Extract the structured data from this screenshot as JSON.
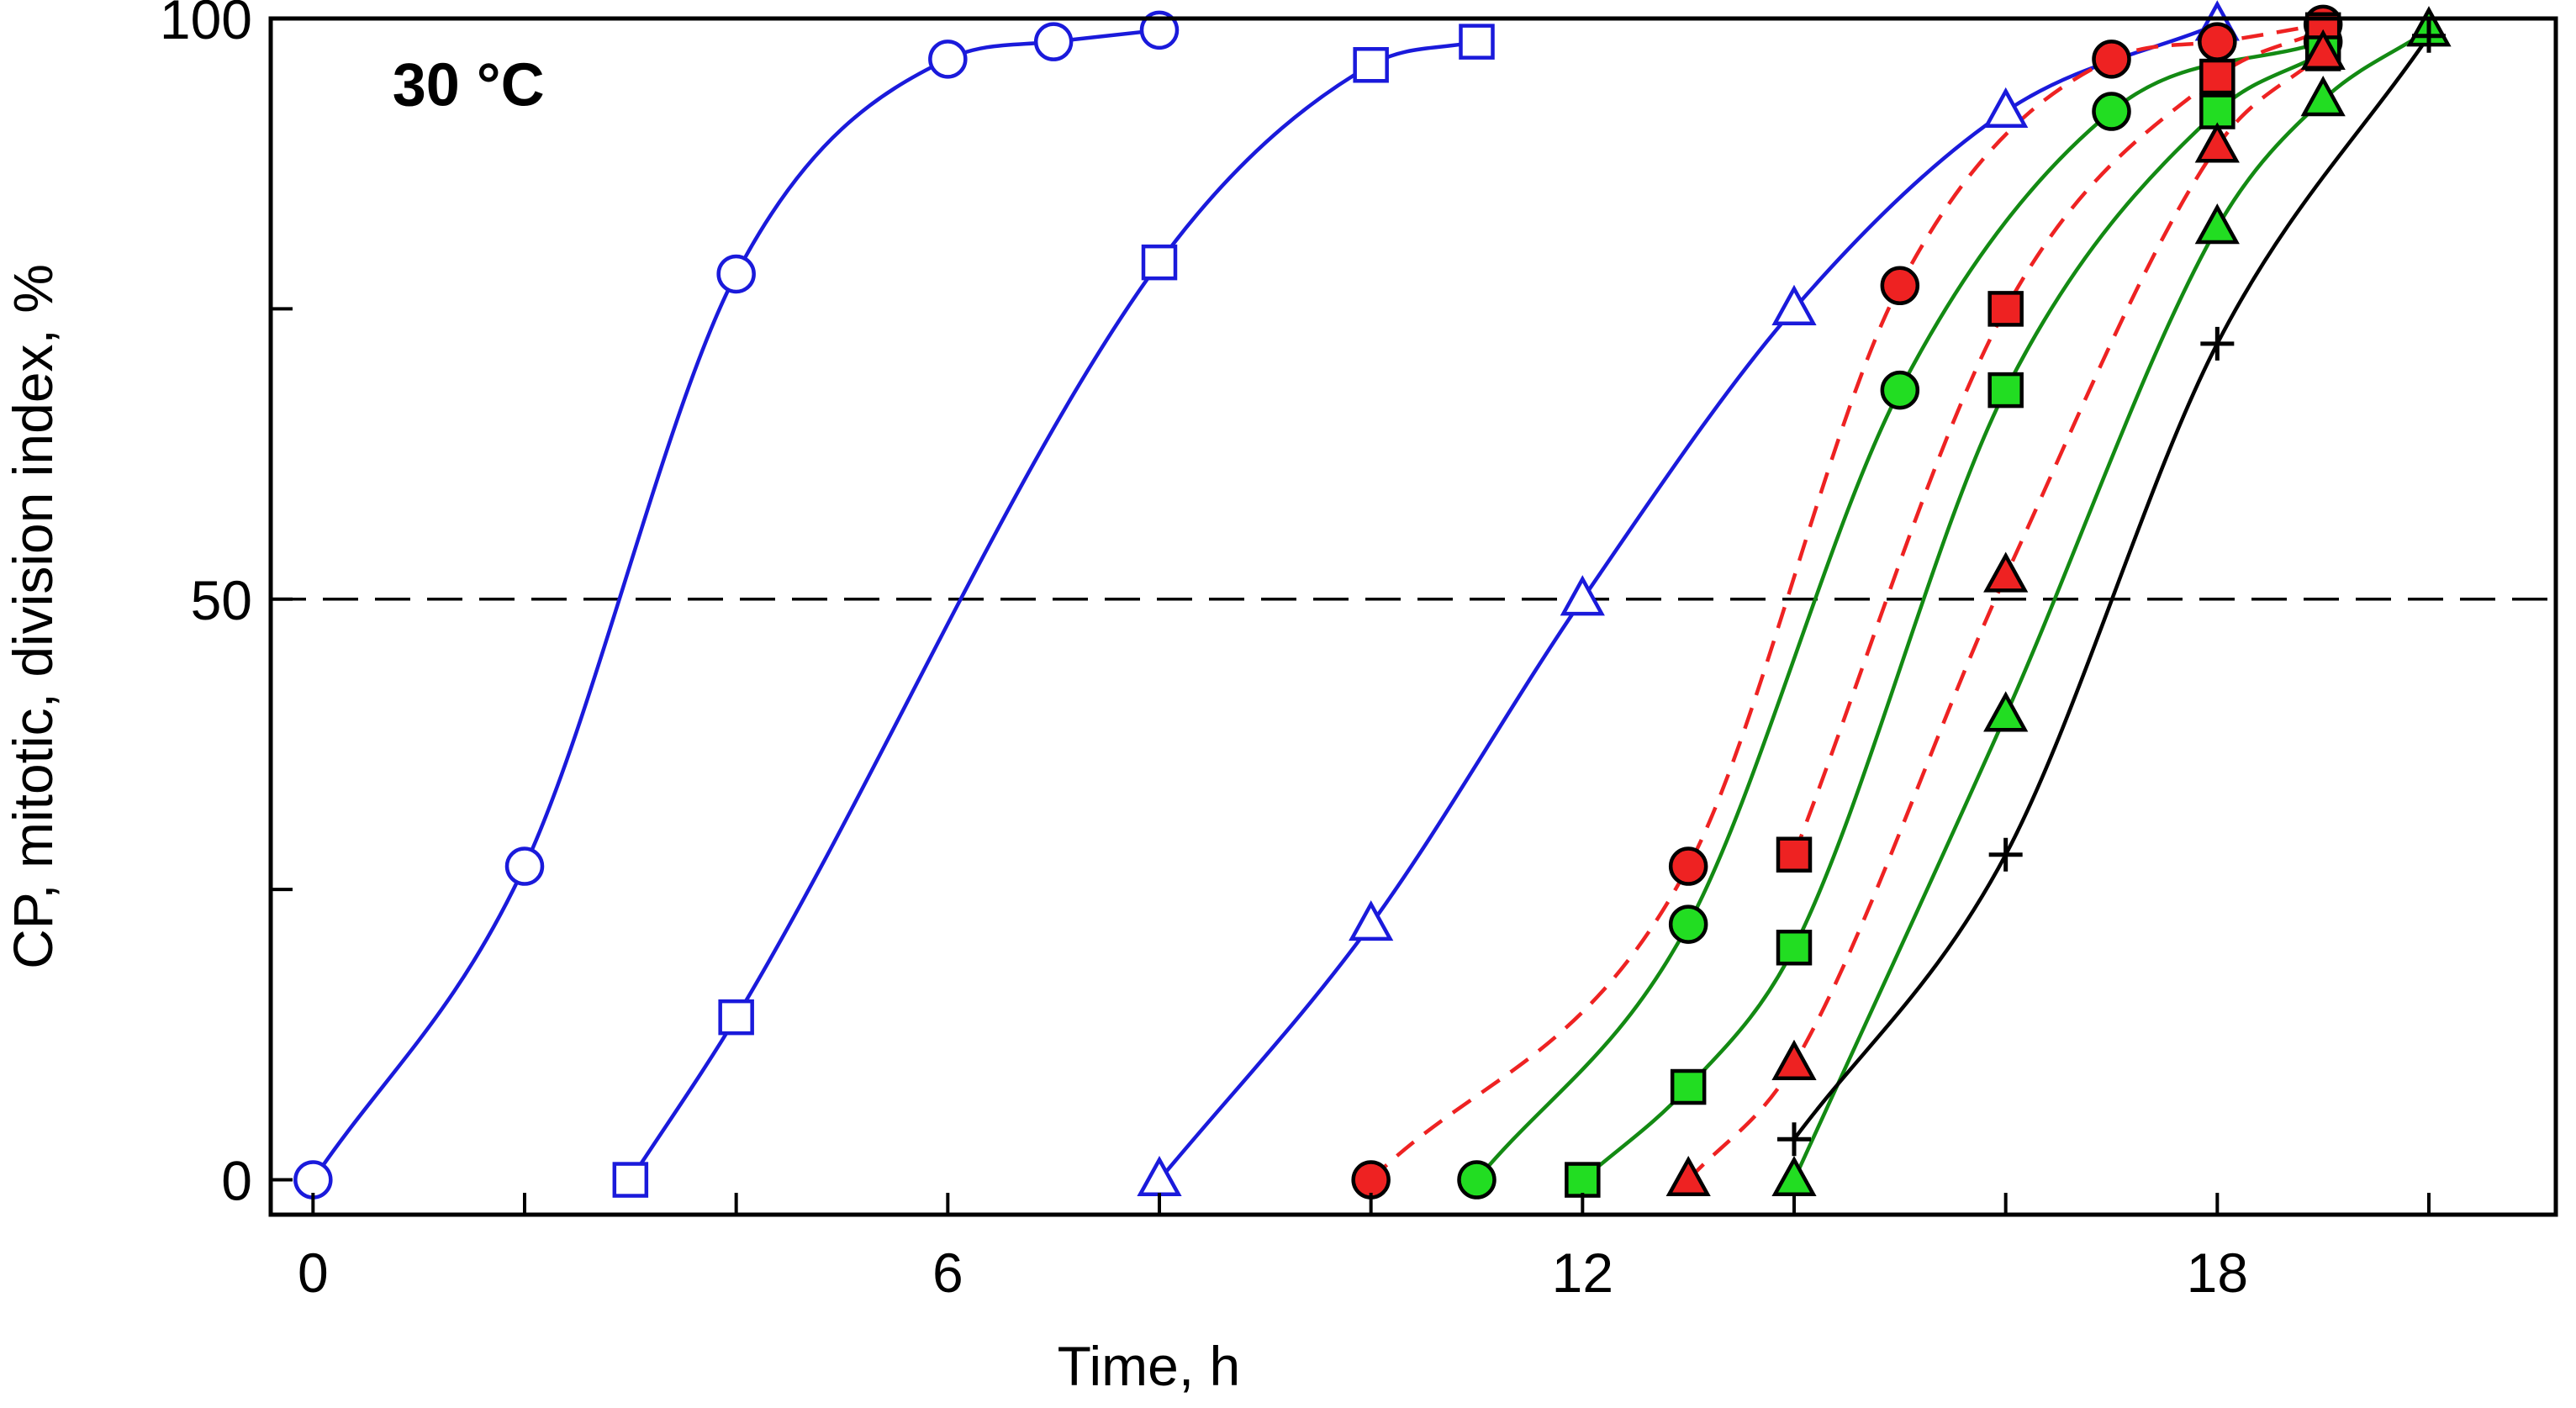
{
  "chart_data": {
    "type": "line",
    "title": "",
    "annotation": "30 °C",
    "xlabel": "Time, h",
    "ylabel": "CP, mitotic, division index, %",
    "xlim": [
      -0.4,
      21.2
    ],
    "ylim": [
      -3,
      100
    ],
    "xticks": [
      0,
      2,
      4,
      6,
      8,
      10,
      12,
      14,
      16,
      18,
      20
    ],
    "xtick_labels": [
      "0",
      "6",
      "12",
      "18"
    ],
    "xtick_label_values": [
      0,
      6,
      12,
      18
    ],
    "yticks": [
      0,
      25,
      50,
      75,
      100
    ],
    "ytick_labels": [
      "0",
      "50",
      "100"
    ],
    "ytick_label_values": [
      0,
      50,
      100
    ],
    "reference_line": {
      "y": 50,
      "style": "dashed",
      "color": "#000000"
    },
    "series": [
      {
        "name": "open circles",
        "marker": "circle",
        "fill": "#ffffff",
        "stroke": "#1a1adb",
        "line_color": "#1a1adb",
        "line_style": "solid",
        "x": [
          0,
          2,
          4,
          6,
          7,
          8
        ],
        "y": [
          0,
          27,
          78,
          96.5,
          98,
          99
        ]
      },
      {
        "name": "open squares",
        "marker": "square",
        "fill": "#ffffff",
        "stroke": "#1a1adb",
        "line_color": "#1a1adb",
        "line_style": "solid",
        "x": [
          3,
          4,
          8,
          10,
          11
        ],
        "y": [
          0,
          14,
          79,
          96,
          98
        ]
      },
      {
        "name": "open triangles",
        "marker": "triangle",
        "fill": "#ffffff",
        "stroke": "#1a1adb",
        "line_color": "#1a1adb",
        "line_style": "solid",
        "x": [
          8,
          10,
          12,
          14,
          16,
          18
        ],
        "y": [
          0,
          22,
          50,
          75,
          92,
          99.5
        ]
      },
      {
        "name": "red circles",
        "marker": "circle",
        "fill": "#ee2222",
        "stroke": "#000000",
        "line_color": "#ee2222",
        "line_style": "dashed",
        "x": [
          10,
          13,
          15,
          17,
          18,
          19
        ],
        "y": [
          0,
          27,
          77,
          96.5,
          98,
          99.5
        ]
      },
      {
        "name": "green circles",
        "marker": "circle",
        "fill": "#22dd22",
        "stroke": "#000000",
        "line_color": "#138a13",
        "line_style": "solid",
        "x": [
          11,
          13,
          15,
          17,
          19
        ],
        "y": [
          0,
          22,
          68,
          92,
          98
        ]
      },
      {
        "name": "red squares",
        "marker": "square",
        "fill": "#ee2222",
        "stroke": "#000000",
        "line_color": "#ee2222",
        "line_style": "dashed",
        "x": [
          14,
          16,
          18,
          19
        ],
        "y": [
          28,
          75,
          95,
          99
        ]
      },
      {
        "name": "green squares",
        "marker": "square",
        "fill": "#22dd22",
        "stroke": "#000000",
        "line_color": "#138a13",
        "line_style": "solid",
        "x": [
          12,
          13,
          14,
          16,
          18,
          19
        ],
        "y": [
          0,
          8,
          20,
          68,
          92,
          97
        ]
      },
      {
        "name": "red triangles",
        "marker": "triangle",
        "fill": "#ee2222",
        "stroke": "#000000",
        "line_color": "#ee2222",
        "line_style": "dashed",
        "x": [
          13,
          14,
          16,
          18,
          19
        ],
        "y": [
          0,
          10,
          52,
          89,
          97
        ]
      },
      {
        "name": "green triangles",
        "marker": "triangle",
        "fill": "#22dd22",
        "stroke": "#000000",
        "line_color": "#138a13",
        "line_style": "solid",
        "x": [
          14,
          16,
          18,
          19,
          20
        ],
        "y": [
          0,
          40,
          82,
          93,
          99
        ]
      },
      {
        "name": "crosses",
        "marker": "plus",
        "fill": "none",
        "stroke": "#000000",
        "line_color": "#000000",
        "line_style": "solid",
        "x": [
          14,
          16,
          18,
          20
        ],
        "y": [
          3.5,
          28,
          72,
          98.5
        ]
      }
    ]
  }
}
